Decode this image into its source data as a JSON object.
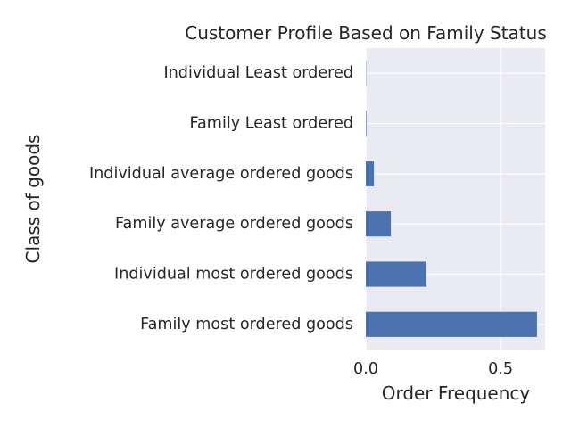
{
  "chart_data": {
    "type": "bar",
    "orientation": "horizontal",
    "title": "Customer Profile Based on Family Status",
    "xlabel": "Order Frequency",
    "ylabel": "Class of goods",
    "categories": [
      "Family most ordered goods",
      "Individual most ordered goods",
      "Family average ordered goods",
      "Individual average ordered goods",
      "Family Least ordered",
      "Individual Least ordered"
    ],
    "values": [
      0.635,
      0.225,
      0.093,
      0.03,
      0.002,
      0.001
    ],
    "xlim": [
      0,
      0.665
    ],
    "xticks": [
      0.0,
      0.5
    ],
    "xtick_labels": [
      "0.0",
      "0.5"
    ],
    "grid": true,
    "legend": "none",
    "colors": {
      "bar": "#4c72b0",
      "plot_background": "#eaeaf2",
      "grid": "#ffffff",
      "text": "#262626"
    }
  }
}
